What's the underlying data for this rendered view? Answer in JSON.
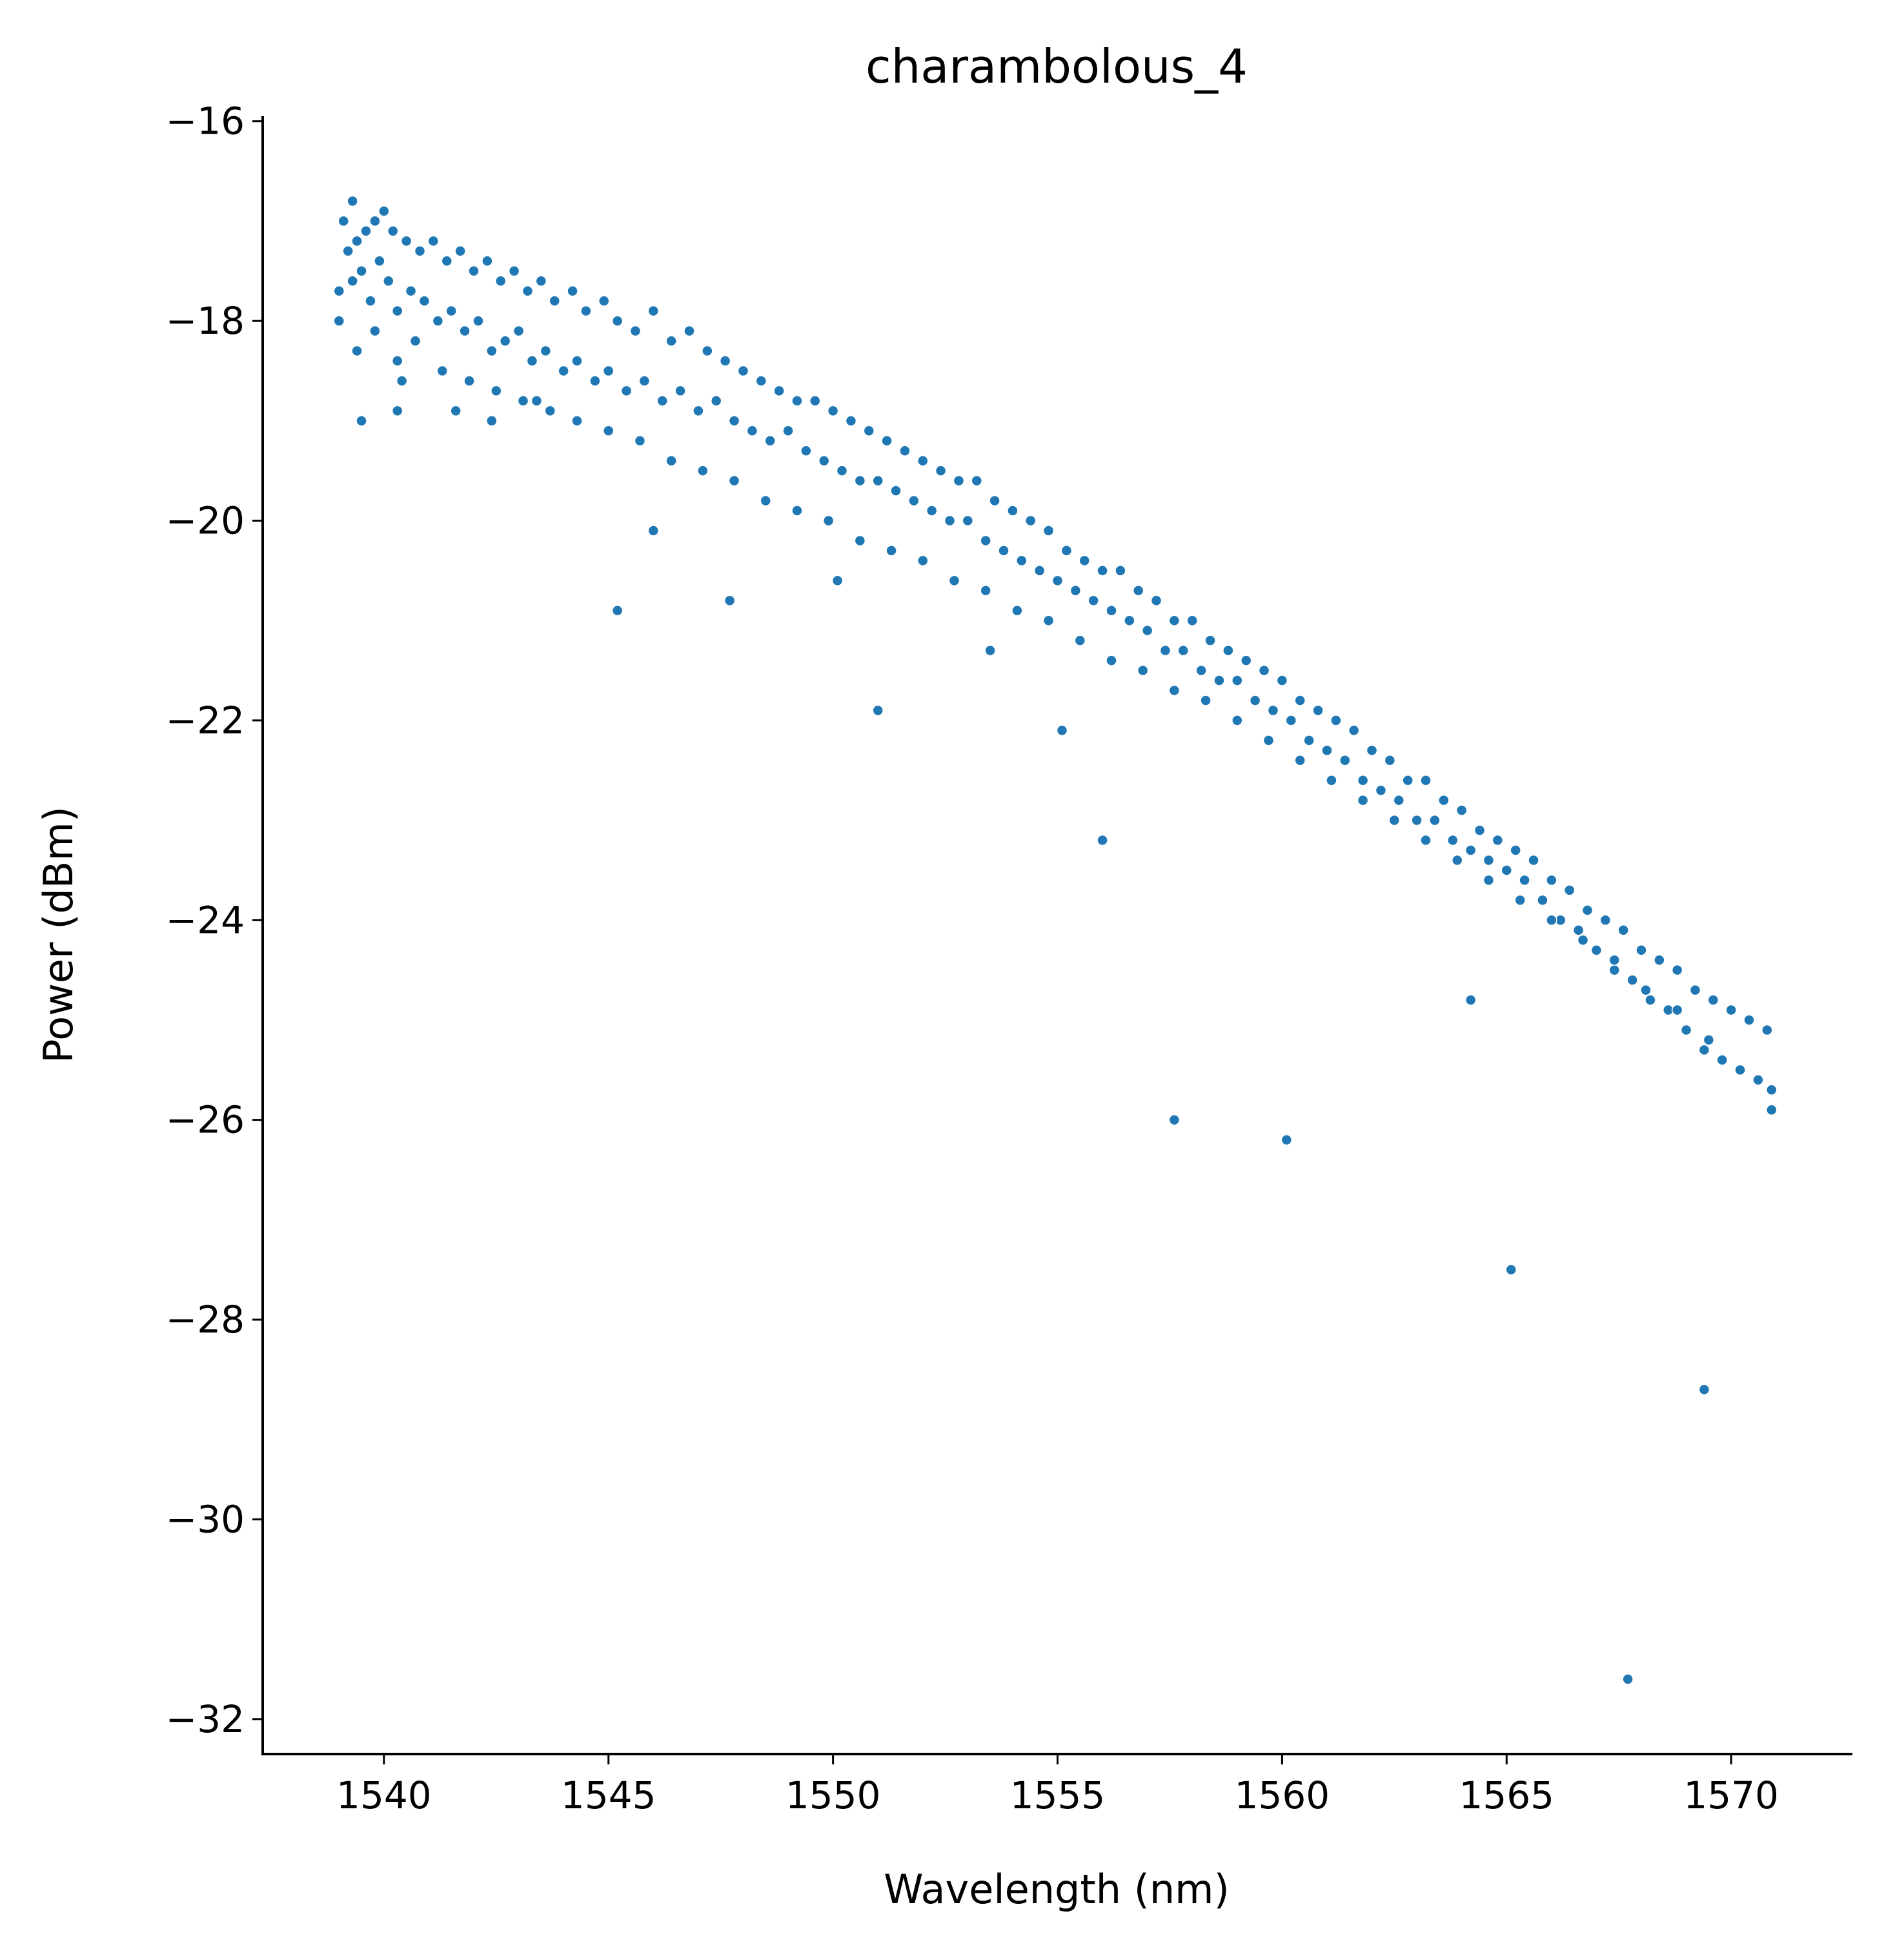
{
  "chart_data": {
    "type": "scatter",
    "title": "charambolous_4",
    "xlabel": "Wavelength (nm)",
    "ylabel": "Power (dBm)",
    "xlim": [
      1537.3,
      1572.7
    ],
    "ylim": [
      -32.35,
      -15.95
    ],
    "xticks": [
      1540,
      1545,
      1550,
      1555,
      1560,
      1565,
      1570
    ],
    "yticks": [
      -16,
      -18,
      -20,
      -22,
      -24,
      -26,
      -28,
      -30,
      -32
    ],
    "xtick_labels": [
      "1540",
      "1545",
      "1550",
      "1555",
      "1560",
      "1565",
      "1570"
    ],
    "ytick_labels": [
      "−16",
      "−18",
      "−20",
      "−22",
      "−24",
      "−26",
      "−28",
      "−30",
      "−32"
    ],
    "grid": false,
    "legend": "none",
    "marker_color": "#1f77b4",
    "series": [
      {
        "x": [
          1539.0,
          1539.2,
          1539.3,
          1539.5,
          1539.7,
          1539.9,
          1540.1,
          1540.3,
          1540.6,
          1540.9,
          1541.2,
          1541.5,
          1541.8,
          1542.1,
          1542.4,
          1542.7,
          1543.0,
          1543.3,
          1543.6,
          1544.0,
          1544.3,
          1544.7,
          1545.0,
          1545.4,
          1545.8,
          1546.2,
          1546.6,
          1547.0,
          1547.4,
          1547.8,
          1548.2,
          1548.6,
          1549.0,
          1549.4,
          1549.8,
          1550.2,
          1550.6,
          1551.0,
          1551.4,
          1551.8,
          1552.2,
          1552.6,
          1553.0,
          1553.4,
          1553.8,
          1554.2,
          1554.6,
          1555.0,
          1555.4,
          1555.8,
          1556.2,
          1556.6,
          1557.0,
          1557.4,
          1557.8,
          1558.2,
          1558.6,
          1559.0,
          1559.4,
          1559.8,
          1560.2,
          1560.6,
          1561.0,
          1561.4,
          1561.8,
          1562.2,
          1562.6,
          1563.0,
          1563.4,
          1563.8,
          1564.2,
          1564.6,
          1565.0,
          1565.4,
          1565.8,
          1566.2,
          1566.6,
          1567.0,
          1567.4,
          1567.8,
          1568.2,
          1568.6,
          1569.0,
          1569.4,
          1569.8,
          1570.2,
          1570.6,
          1570.9
        ],
        "y": [
          -17.7,
          -17.3,
          -17.6,
          -17.5,
          -17.8,
          -17.4,
          -17.6,
          -17.9,
          -17.7,
          -17.8,
          -18.0,
          -17.9,
          -18.1,
          -18.0,
          -18.3,
          -18.2,
          -18.1,
          -18.4,
          -18.3,
          -18.5,
          -18.4,
          -18.6,
          -18.5,
          -18.7,
          -18.6,
          -18.8,
          -18.7,
          -18.9,
          -18.8,
          -19.0,
          -19.1,
          -19.2,
          -19.1,
          -19.3,
          -19.4,
          -19.5,
          -19.6,
          -19.6,
          -19.7,
          -19.8,
          -19.9,
          -20.0,
          -20.0,
          -20.2,
          -20.3,
          -20.4,
          -20.5,
          -20.6,
          -20.7,
          -20.8,
          -20.9,
          -21.0,
          -21.1,
          -21.3,
          -21.3,
          -21.5,
          -21.6,
          -21.6,
          -21.8,
          -21.9,
          -22.0,
          -22.2,
          -22.3,
          -22.4,
          -22.6,
          -22.7,
          -22.8,
          -23.0,
          -23.0,
          -23.2,
          -23.3,
          -23.4,
          -23.5,
          -23.6,
          -23.8,
          -24.0,
          -24.1,
          -24.3,
          -24.5,
          -24.6,
          -24.8,
          -24.9,
          -25.1,
          -25.3,
          -25.4,
          -25.5,
          -25.6,
          -25.7
        ]
      },
      {
        "x": [
          1539.1,
          1539.3,
          1539.4,
          1539.6,
          1539.8,
          1540.0,
          1540.2,
          1540.5,
          1540.8,
          1541.1,
          1541.4,
          1541.7,
          1542.0,
          1542.3,
          1542.6,
          1542.9,
          1543.2,
          1543.5,
          1543.8,
          1544.2,
          1544.5,
          1544.9,
          1545.2,
          1545.6,
          1546.0,
          1546.4,
          1546.8,
          1547.2,
          1547.6,
          1548.0,
          1548.4,
          1548.8,
          1549.2,
          1549.6,
          1550.0,
          1550.4,
          1550.8,
          1551.2,
          1551.6,
          1552.0,
          1552.4,
          1552.8,
          1553.2,
          1553.6,
          1554.0,
          1554.4,
          1554.8,
          1555.2,
          1555.6,
          1556.0,
          1556.4,
          1556.8,
          1557.2,
          1557.6,
          1558.0,
          1558.4,
          1558.8,
          1559.2,
          1559.6,
          1560.0,
          1560.4,
          1560.8,
          1561.2,
          1561.6,
          1562.0,
          1562.4,
          1562.8,
          1563.2,
          1563.6,
          1564.0,
          1564.4,
          1564.8,
          1565.2,
          1565.6,
          1566.0,
          1566.4,
          1566.8,
          1567.2,
          1567.6,
          1568.0,
          1568.4,
          1568.8,
          1569.2,
          1569.6,
          1570.0,
          1570.4,
          1570.8
        ],
        "y": [
          -17.0,
          -16.8,
          -17.2,
          -17.1,
          -17.0,
          -16.9,
          -17.1,
          -17.2,
          -17.3,
          -17.2,
          -17.4,
          -17.3,
          -17.5,
          -17.4,
          -17.6,
          -17.5,
          -17.7,
          -17.6,
          -17.8,
          -17.7,
          -17.9,
          -17.8,
          -18.0,
          -18.1,
          -17.9,
          -18.2,
          -18.1,
          -18.3,
          -18.4,
          -18.5,
          -18.6,
          -18.7,
          -18.8,
          -18.8,
          -18.9,
          -19.0,
          -19.1,
          -19.2,
          -19.3,
          -19.4,
          -19.5,
          -19.6,
          -19.6,
          -19.8,
          -19.9,
          -20.0,
          -20.1,
          -20.3,
          -20.4,
          -20.5,
          -20.5,
          -20.7,
          -20.8,
          -21.0,
          -21.0,
          -21.2,
          -21.3,
          -21.4,
          -21.5,
          -21.6,
          -21.8,
          -21.9,
          -22.0,
          -22.1,
          -22.3,
          -22.4,
          -22.6,
          -22.6,
          -22.8,
          -22.9,
          -23.1,
          -23.2,
          -23.3,
          -23.4,
          -23.6,
          -23.7,
          -23.9,
          -24.0,
          -24.1,
          -24.3,
          -24.4,
          -24.5,
          -24.7,
          -24.8,
          -24.9,
          -25.0,
          -25.1
        ]
      },
      {
        "x": [
          1539.0,
          1539.4,
          1539.8,
          1540.3,
          1540.7,
          1541.3,
          1541.9,
          1542.5,
          1543.1,
          1543.7,
          1544.3,
          1545.0,
          1545.7,
          1546.4,
          1547.1,
          1547.8,
          1548.5,
          1549.2,
          1549.9,
          1550.6,
          1551.3,
          1552.0,
          1552.7,
          1553.4,
          1554.1,
          1554.8,
          1555.5,
          1556.2,
          1556.9,
          1557.6,
          1558.3,
          1559.0,
          1559.7,
          1560.4,
          1561.1,
          1561.8,
          1562.5,
          1563.2,
          1563.9,
          1564.6,
          1565.3,
          1566.0,
          1566.7,
          1567.4,
          1568.1,
          1568.8,
          1569.5,
          1570.2,
          1570.9
        ],
        "y": [
          -18.0,
          -18.3,
          -18.1,
          -18.4,
          -18.2,
          -18.5,
          -18.6,
          -18.7,
          -18.8,
          -18.9,
          -19.0,
          -19.1,
          -19.2,
          -19.4,
          -19.5,
          -19.6,
          -19.8,
          -19.9,
          -20.0,
          -20.2,
          -20.3,
          -20.4,
          -20.6,
          -20.7,
          -20.9,
          -21.0,
          -21.2,
          -21.4,
          -21.5,
          -21.7,
          -21.8,
          -22.0,
          -22.2,
          -22.4,
          -22.6,
          -22.8,
          -23.0,
          -23.2,
          -23.4,
          -23.6,
          -23.8,
          -24.0,
          -24.2,
          -24.4,
          -24.7,
          -24.9,
          -25.2,
          -25.5,
          -25.9
        ]
      },
      {
        "x": [
          1539.5,
          1540.3,
          1540.4,
          1541.6,
          1542.4,
          1543.4,
          1545.2,
          1546.0,
          1547.7,
          1550.1,
          1551.0,
          1553.5,
          1555.1,
          1556.0,
          1557.6,
          1560.1,
          1564.2,
          1565.1,
          1567.7,
          1569.4
        ],
        "y": [
          -19.0,
          -18.9,
          -18.6,
          -18.9,
          -19.0,
          -18.8,
          -20.9,
          -20.1,
          -20.8,
          -20.6,
          -21.9,
          -21.3,
          -22.1,
          -23.2,
          -26.0,
          -26.2,
          -24.8,
          -27.5,
          -31.6,
          -28.7
        ]
      }
    ]
  }
}
